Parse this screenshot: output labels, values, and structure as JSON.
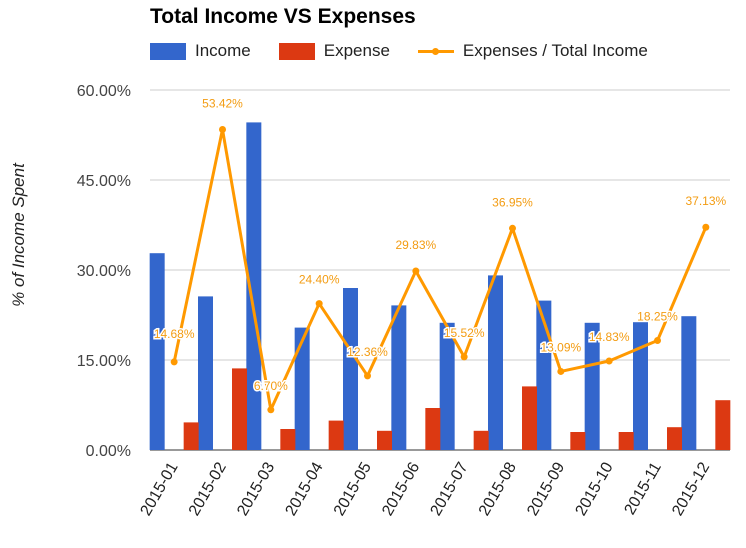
{
  "chart_data": {
    "type": "bar",
    "title": "Total Income VS Expenses",
    "xlabel": "",
    "ylabel": "% of Income Spent",
    "ylim": [
      0,
      60
    ],
    "y_ticks": [
      "0.00%",
      "15.00%",
      "30.00%",
      "45.00%",
      "60.00%"
    ],
    "categories": [
      "2015-01",
      "2015-02",
      "2015-03",
      "2015-04",
      "2015-05",
      "2015-06",
      "2015-07",
      "2015-08",
      "2015-09",
      "2015-10",
      "2015-11",
      "2015-12"
    ],
    "series": [
      {
        "name": "Income",
        "type": "bar",
        "color": "#3366cc",
        "values": [
          32.8,
          25.6,
          54.6,
          20.4,
          27.0,
          24.1,
          21.2,
          29.1,
          24.9,
          21.2,
          21.3,
          22.3
        ]
      },
      {
        "name": "Expense",
        "type": "bar",
        "color": "#dc3912",
        "values": [
          4.6,
          13.6,
          3.5,
          4.9,
          3.2,
          7.0,
          3.2,
          10.6,
          3.0,
          3.0,
          3.8,
          8.3
        ]
      },
      {
        "name": "Expenses / Total Income",
        "type": "line",
        "color": "#ff9900",
        "values": [
          14.68,
          53.42,
          6.7,
          24.4,
          12.36,
          29.83,
          15.52,
          36.95,
          13.09,
          14.83,
          18.25,
          37.13
        ],
        "labels": [
          "14.68%",
          "53.42%",
          "6.70%",
          "24.40%",
          "12.36%",
          "29.83%",
          "15.52%",
          "36.95%",
          "13.09%",
          "14.83%",
          "18.25%",
          "37.13%"
        ]
      }
    ],
    "grid": true,
    "legend": "top"
  }
}
